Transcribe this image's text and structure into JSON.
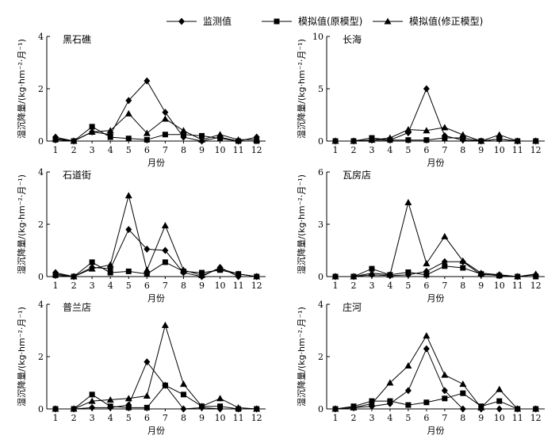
{
  "legend": [
    {
      "label": "监测值",
      "marker": "diamond"
    },
    {
      "label": "模拟值(原模型)",
      "marker": "square"
    },
    {
      "label": "模拟值(修正模型)",
      "marker": "triangle"
    }
  ],
  "chart_data": [
    {
      "type": "line",
      "title": "黑石礁",
      "x": [
        1,
        2,
        3,
        4,
        5,
        6,
        7,
        8,
        9,
        10,
        11,
        12
      ],
      "xlabel": "月份",
      "ylabel": "湿沉降量/(kg·hm⁻²·月⁻¹)",
      "ylim": [
        0,
        4
      ],
      "yticks": [
        0,
        2,
        4
      ],
      "series": [
        {
          "name": "监测值",
          "values": [
            0.15,
            0.0,
            0.35,
            0.25,
            1.55,
            2.3,
            1.1,
            0.15,
            0.0,
            0.15,
            0.0,
            0.15
          ]
        },
        {
          "name": "模拟值(原模型)",
          "values": [
            0.05,
            0.0,
            0.55,
            0.15,
            0.1,
            0.05,
            0.25,
            0.25,
            0.2,
            0.1,
            0.0,
            0.0
          ]
        },
        {
          "name": "模拟值(修正模型)",
          "values": [
            0.1,
            0.0,
            0.35,
            0.4,
            1.05,
            0.3,
            0.85,
            0.4,
            0.05,
            0.25,
            0.05,
            0.05
          ]
        }
      ]
    },
    {
      "type": "line",
      "title": "长海",
      "x": [
        1,
        2,
        3,
        4,
        5,
        6,
        7,
        8,
        9,
        10,
        11,
        12
      ],
      "xlabel": "月份",
      "ylabel": "湿沉降量/(kg·hm⁻²·月⁻¹)",
      "ylim": [
        0,
        10
      ],
      "yticks": [
        0,
        5,
        10
      ],
      "series": [
        {
          "name": "监测值",
          "values": [
            0.0,
            0.0,
            0.1,
            0.1,
            0.8,
            5.0,
            0.5,
            0.1,
            0.0,
            0.2,
            0.0,
            0.0
          ]
        },
        {
          "name": "模拟值(原模型)",
          "values": [
            0.0,
            0.0,
            0.3,
            0.1,
            0.1,
            0.1,
            0.3,
            0.3,
            0.0,
            0.2,
            0.0,
            0.0
          ]
        },
        {
          "name": "模拟值(修正模型)",
          "values": [
            0.0,
            0.0,
            0.1,
            0.3,
            1.1,
            1.0,
            1.3,
            0.6,
            0.0,
            0.6,
            0.0,
            0.0
          ]
        }
      ]
    },
    {
      "type": "line",
      "title": "石道街",
      "x": [
        1,
        2,
        3,
        4,
        5,
        6,
        7,
        8,
        9,
        10,
        11,
        12
      ],
      "xlabel": "月份",
      "ylabel": "湿沉降量/(kg·hm⁻²·月⁻¹)",
      "ylim": [
        0,
        4
      ],
      "yticks": [
        0,
        2,
        4
      ],
      "series": [
        {
          "name": "监测值",
          "values": [
            0.15,
            0.0,
            0.35,
            0.3,
            1.8,
            1.05,
            1.0,
            0.15,
            0.0,
            0.35,
            0.0,
            0.0
          ]
        },
        {
          "name": "模拟值(原模型)",
          "values": [
            0.05,
            0.0,
            0.55,
            0.15,
            0.2,
            0.1,
            0.55,
            0.2,
            0.15,
            0.25,
            0.1,
            0.0
          ]
        },
        {
          "name": "模拟值(修正模型)",
          "values": [
            0.1,
            0.0,
            0.3,
            0.45,
            3.1,
            0.25,
            1.95,
            0.25,
            0.05,
            0.3,
            0.1,
            0.0
          ]
        }
      ]
    },
    {
      "type": "line",
      "title": "瓦房店",
      "x": [
        1,
        2,
        3,
        4,
        5,
        6,
        7,
        8,
        9,
        10,
        11,
        12
      ],
      "xlabel": "月份",
      "ylabel": "湿沉降量/(kg·hm⁻²·月⁻¹)",
      "ylim": [
        0,
        6
      ],
      "yticks": [
        0,
        3,
        6
      ],
      "series": [
        {
          "name": "监测值",
          "values": [
            0.0,
            0.0,
            0.1,
            0.05,
            0.1,
            0.3,
            0.85,
            0.85,
            0.1,
            0.1,
            0.0,
            0.1
          ]
        },
        {
          "name": "模拟值(原模型)",
          "values": [
            0.0,
            0.0,
            0.45,
            0.1,
            0.25,
            0.1,
            0.6,
            0.5,
            0.15,
            0.05,
            0.0,
            0.0
          ]
        },
        {
          "name": "模拟值(修正模型)",
          "values": [
            0.0,
            0.0,
            0.2,
            0.1,
            4.25,
            0.75,
            2.3,
            0.9,
            0.2,
            0.1,
            0.0,
            0.15
          ]
        }
      ]
    },
    {
      "type": "line",
      "title": "普兰店",
      "x": [
        1,
        2,
        3,
        4,
        5,
        6,
        7,
        8,
        9,
        10,
        11,
        12
      ],
      "xlabel": "月份",
      "ylabel": "湿沉降量/(kg·hm⁻²·月⁻¹)",
      "ylim": [
        0,
        4
      ],
      "yticks": [
        0,
        2,
        4
      ],
      "series": [
        {
          "name": "监测值",
          "values": [
            0.0,
            0.0,
            0.05,
            0.05,
            0.15,
            1.8,
            0.9,
            0.0,
            0.05,
            0.0,
            0.0,
            0.0
          ]
        },
        {
          "name": "模拟值(原模型)",
          "values": [
            0.0,
            0.0,
            0.55,
            0.1,
            0.05,
            0.05,
            0.9,
            0.55,
            0.1,
            0.1,
            0.0,
            0.0
          ]
        },
        {
          "name": "模拟值(修正模型)",
          "values": [
            0.0,
            0.0,
            0.3,
            0.35,
            0.4,
            0.5,
            3.2,
            0.95,
            0.1,
            0.4,
            0.05,
            0.0
          ]
        }
      ]
    },
    {
      "type": "line",
      "title": "庄河",
      "x": [
        1,
        2,
        3,
        4,
        5,
        6,
        7,
        8,
        9,
        10,
        11,
        12
      ],
      "xlabel": "月份",
      "ylabel": "湿沉降量/(kg·hm⁻²·月⁻¹)",
      "ylim": [
        0,
        4
      ],
      "yticks": [
        0,
        2,
        4
      ],
      "series": [
        {
          "name": "监测值",
          "values": [
            0.0,
            0.05,
            0.1,
            0.2,
            0.7,
            2.3,
            0.7,
            0.0,
            0.0,
            0.0,
            0.0,
            0.0
          ]
        },
        {
          "name": "模拟值(原模型)",
          "values": [
            0.0,
            0.1,
            0.3,
            0.3,
            0.15,
            0.25,
            0.4,
            0.6,
            0.1,
            0.3,
            0.0,
            0.0
          ]
        },
        {
          "name": "模拟值(修正模型)",
          "values": [
            0.0,
            0.05,
            0.2,
            1.0,
            1.65,
            2.8,
            1.3,
            0.95,
            0.05,
            0.75,
            0.0,
            0.0
          ]
        }
      ]
    }
  ]
}
